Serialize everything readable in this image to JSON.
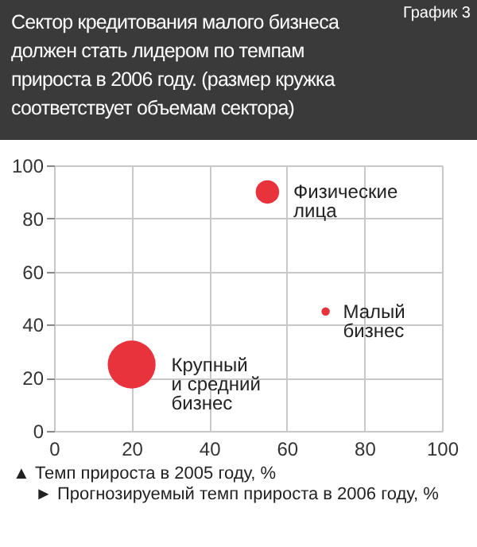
{
  "chart_data": {
    "type": "bubble",
    "title": "Сектор кредитования малого бизнеса должен стать лидером по темпам прироста в 2006 году. (размер кружка соответствует объемам сектора)",
    "annotations": [
      "График 3",
      "▲ Темп прироста в 2005 году, %",
      "► Прогнозируемый темп прироста в 2006 году, %"
    ],
    "series": [
      {
        "name": "Физические лица",
        "color": "#e8323c",
        "x": [
          55
        ],
        "values": [
          90
        ],
        "sizes": [
          0.24
        ]
      },
      {
        "name": "Малый бизнес",
        "color": "#e8323c",
        "x": [
          70
        ],
        "values": [
          45
        ],
        "sizes": [
          0.03
        ]
      },
      {
        "name": "Крупный и средний бизнес",
        "color": "#e8323c",
        "x": [
          20
        ],
        "values": [
          25
        ],
        "sizes": [
          1
        ]
      }
    ],
    "xlim": [
      0,
      100
    ],
    "xticks": [
      0,
      20,
      40,
      60,
      80,
      100
    ],
    "ylim": [
      0,
      100
    ],
    "yticks": [
      0,
      20,
      40,
      60,
      80,
      100
    ],
    "grid": true,
    "legend": false
  }
}
